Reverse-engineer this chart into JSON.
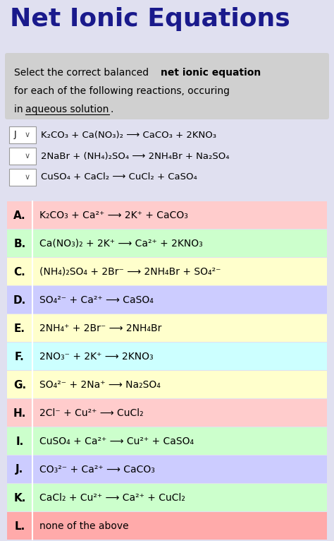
{
  "title": "Net Ionic Equations",
  "title_color": "#1a1a8c",
  "bg_color": "#e0e0f0",
  "intro_bg": "#d8d8d8",
  "options": [
    {
      "letter": "A",
      "bg": "#ffcccc",
      "text": "K₂CO₃ + Ca²⁺ ⟶ 2K⁺ + CaCO₃"
    },
    {
      "letter": "B",
      "bg": "#ccffcc",
      "text": "Ca(NO₃)₂ + 2K⁺ ⟶ Ca²⁺ + 2KNO₃"
    },
    {
      "letter": "C",
      "bg": "#ffffcc",
      "text": "(NH₄)₂SO₄ + 2Br⁻ ⟶ 2NH₄Br + SO₄²⁻"
    },
    {
      "letter": "D",
      "bg": "#ccccff",
      "text": "SO₄²⁻ + Ca²⁺ ⟶ CaSO₄"
    },
    {
      "letter": "E",
      "bg": "#ffffcc",
      "text": "2NH₄⁺ + 2Br⁻ ⟶ 2NH₄Br"
    },
    {
      "letter": "F",
      "bg": "#ccffff",
      "text": "2NO₃⁻ + 2K⁺ ⟶ 2KNO₃"
    },
    {
      "letter": "G",
      "bg": "#ffffcc",
      "text": "SO₄²⁻ + 2Na⁺ ⟶ Na₂SO₄"
    },
    {
      "letter": "H",
      "bg": "#ffcccc",
      "text": "2Cl⁻ + Cu²⁺ ⟶ CuCl₂"
    },
    {
      "letter": "I",
      "bg": "#ccffcc",
      "text": "CuSO₄ + Ca²⁺ ⟶ Cu²⁺ + CaSO₄"
    },
    {
      "letter": "J",
      "bg": "#ccccff",
      "text": "CO₃²⁻ + Ca²⁺ ⟶ CaCO₃"
    },
    {
      "letter": "K",
      "bg": "#ccffcc",
      "text": "CaCl₂ + Cu²⁺ ⟶ Ca²⁺ + CuCl₂"
    },
    {
      "letter": "L",
      "bg": "#ffaaaa",
      "text": "none of the above"
    }
  ],
  "dropdown_reactions": [
    {
      "label": "J",
      "eq": "K₂CO₃ + Ca(NO₃)₂ ⟶ CaCO₃ + 2KNO₃"
    },
    {
      "label": "",
      "eq": "2NaBr + (NH₄)₂SO₄ ⟶ 2NH₄Br + Na₂SO₄"
    },
    {
      "label": "",
      "eq": "CuSO₄ + CaCl₂ ⟶ CuCl₂ + CaSO₄"
    }
  ]
}
